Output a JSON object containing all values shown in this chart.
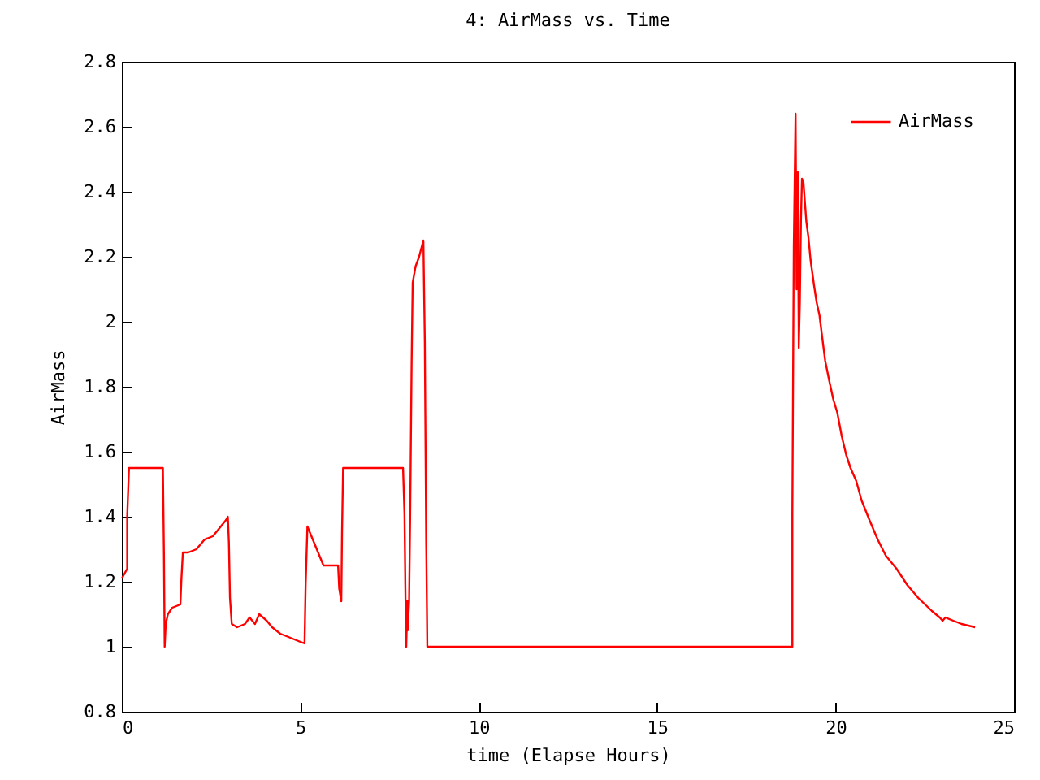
{
  "chart_data": {
    "type": "line",
    "title": "4: AirMass vs. Time",
    "xlabel": "time (Elapse Hours)",
    "ylabel": "AirMass",
    "xlim": [
      0,
      25
    ],
    "xticks": [
      0,
      5,
      10,
      15,
      20,
      25
    ],
    "ylim": [
      0.8,
      2.8
    ],
    "yticks": [
      0.8,
      1,
      1.2,
      1.4,
      1.6,
      1.8,
      2,
      2.2,
      2.4,
      2.6,
      2.8
    ],
    "grid": false,
    "legend": "top right",
    "marker": "none",
    "line_style": "solid",
    "series": [
      {
        "name": "AirMass",
        "color": "#ff0000",
        "x": [
          0,
          0.15,
          0.15,
          0.2,
          1.15,
          1.18,
          1.2,
          1.23,
          1.29,
          1.41,
          1.64,
          1.67,
          1.71,
          1.86,
          2.09,
          2.32,
          2.55,
          2.7,
          2.92,
          2.97,
          3.0,
          3.03,
          3.08,
          3.23,
          3.45,
          3.58,
          3.73,
          3.85,
          4.06,
          4.21,
          4.44,
          4.67,
          4.89,
          5.12,
          5.15,
          5.2,
          5.35,
          5.5,
          5.65,
          6.06,
          6.09,
          6.15,
          6.17,
          6.2,
          7.88,
          7.92,
          7.95,
          7.97,
          8.0,
          8.01,
          8.05,
          8.08,
          8.12,
          8.15,
          8.23,
          8.33,
          8.45,
          8.49,
          8.53,
          8.56,
          18.79,
          18.79,
          18.83,
          18.88,
          18.91,
          18.94,
          18.97,
          19.0,
          19.03,
          19.06,
          19.1,
          19.14,
          19.18,
          19.24,
          19.3,
          19.4,
          19.47,
          19.55,
          19.64,
          19.71,
          19.82,
          19.94,
          20.05,
          20.17,
          20.3,
          20.42,
          20.58,
          20.73,
          20.95,
          21.18,
          21.41,
          21.71,
          22.01,
          22.32,
          22.7,
          22.92,
          23.0,
          23.08,
          23.3,
          23.53,
          23.91
        ],
        "values": [
          1.21,
          1.24,
          1.4,
          1.55,
          1.55,
          1.28,
          1.0,
          1.07,
          1.1,
          1.12,
          1.13,
          1.21,
          1.29,
          1.29,
          1.3,
          1.33,
          1.34,
          1.36,
          1.39,
          1.4,
          1.32,
          1.15,
          1.07,
          1.06,
          1.07,
          1.09,
          1.07,
          1.1,
          1.08,
          1.06,
          1.04,
          1.03,
          1.02,
          1.01,
          1.19,
          1.37,
          1.33,
          1.29,
          1.25,
          1.25,
          1.18,
          1.14,
          1.35,
          1.55,
          1.55,
          1.41,
          1.14,
          1.0,
          1.14,
          1.05,
          1.14,
          1.41,
          1.87,
          2.12,
          2.17,
          2.2,
          2.25,
          1.94,
          1.32,
          1.0,
          1.0,
          1.41,
          2.23,
          2.64,
          2.1,
          2.46,
          1.92,
          2.06,
          2.31,
          2.44,
          2.43,
          2.37,
          2.31,
          2.26,
          2.19,
          2.11,
          2.06,
          2.02,
          1.94,
          1.88,
          1.82,
          1.76,
          1.72,
          1.65,
          1.59,
          1.55,
          1.51,
          1.45,
          1.39,
          1.33,
          1.28,
          1.24,
          1.19,
          1.15,
          1.11,
          1.09,
          1.08,
          1.09,
          1.08,
          1.07,
          1.06
        ]
      }
    ]
  }
}
